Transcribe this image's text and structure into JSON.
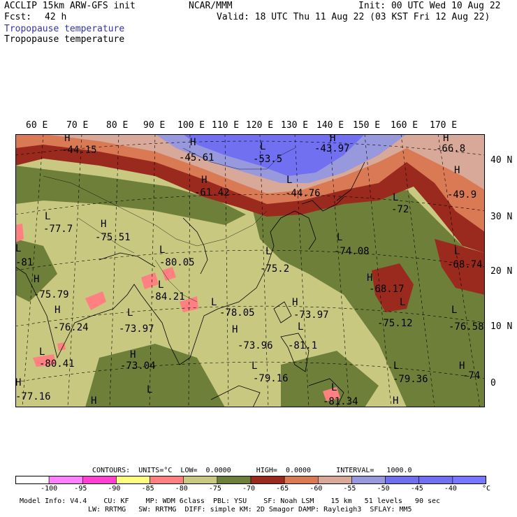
{
  "header": {
    "model": "ACCLIP 15km ARW-GFS init",
    "org": "NCAR/MMM",
    "init": "Init: 00 UTC Wed 10 Aug 22",
    "fcst_label": "Fcst:",
    "fcst_value": "42 h",
    "valid": "Valid: 18 UTC Thu 11 Aug 22 (03 KST Fri 12 Aug 22)",
    "field_title_1": "Tropopause temperature",
    "field_title_2": "Tropopause temperature"
  },
  "map": {
    "lon_labels": [
      "60 E",
      "70 E",
      "80 E",
      "90 E",
      "100 E",
      "110 E",
      "120 E",
      "130 E",
      "140 E",
      "150 E",
      "160 E",
      "170 E"
    ],
    "lat_labels": [
      "40 N",
      "30 N",
      "20 N",
      "10 N",
      "0"
    ],
    "annotations": [
      {
        "marker": "H",
        "value": "-44.15"
      },
      {
        "marker": "H",
        "value": "-45.61"
      },
      {
        "marker": "L",
        "value": "-53.5"
      },
      {
        "marker": "H",
        "value": "-43.97"
      },
      {
        "marker": "H",
        "value": "-66.8"
      },
      {
        "marker": "H",
        "value": "-61.42"
      },
      {
        "marker": "L",
        "value": "-44.76"
      },
      {
        "marker": "H",
        "value": "-49.9"
      },
      {
        "marker": "L",
        "value": "-72"
      },
      {
        "marker": "L",
        "value": "-77.7"
      },
      {
        "marker": "H",
        "value": "-75.51"
      },
      {
        "marker": "L",
        "value": "-80.05"
      },
      {
        "marker": "L",
        "value": "-74.08"
      },
      {
        "marker": "L",
        "value": "-75.2"
      },
      {
        "marker": "L",
        "value": "-68.74"
      },
      {
        "marker": "L",
        "value": "-81"
      },
      {
        "marker": "H",
        "value": "-75.79"
      },
      {
        "marker": "L",
        "value": "-84.21"
      },
      {
        "marker": "H",
        "value": "-68.17"
      },
      {
        "marker": "L",
        "value": "-78.05"
      },
      {
        "marker": "H",
        "value": "-73.97"
      },
      {
        "marker": "H",
        "value": "-76.24"
      },
      {
        "marker": "L",
        "value": "-73.97"
      },
      {
        "marker": "L",
        "value": "-75.12"
      },
      {
        "marker": "L",
        "value": "-76.58"
      },
      {
        "marker": "H",
        "value": "-73.96"
      },
      {
        "marker": "L",
        "value": "-81.1"
      },
      {
        "marker": "L",
        "value": "-80.41"
      },
      {
        "marker": "H",
        "value": "-73.04"
      },
      {
        "marker": "L",
        "value": "-79.16"
      },
      {
        "marker": "L",
        "value": "-79.36"
      },
      {
        "marker": "H",
        "value": "-74"
      },
      {
        "marker": "H",
        "value": "-77.16"
      },
      {
        "marker": "L",
        "value": "-81.34"
      },
      {
        "marker": "H",
        "value": ""
      },
      {
        "marker": "L",
        "value": ""
      },
      {
        "marker": "H",
        "value": ""
      }
    ]
  },
  "contours_line": "CONTOURS:  UNITS=°C  LOW=  0.0000      HIGH=  0.0000      INTERVAL=   1000.0",
  "colorbar": {
    "labels": [
      "-100",
      "-95",
      "-90",
      "-85",
      "-80",
      "-75",
      "-70",
      "-65",
      "-60",
      "-55",
      "-50",
      "-45",
      "-40"
    ],
    "unit": "°C",
    "colors": [
      "#ffffff",
      "#ff80ff",
      "#ff40d0",
      "#ffff80",
      "#ff8080",
      "#c8c880",
      "#6e7f3a",
      "#9a2a1e",
      "#d97a55",
      "#d8a898",
      "#9898dd",
      "#7070ee",
      "#7070f0",
      "#7777ff"
    ]
  },
  "footer": {
    "line1": "Model Info: V4.4    CU: KF    MP: WDM 6class  PBL: YSU    SF: Noah LSM    15 km   51 levels   90 sec",
    "line2": "LW: RRTMG   SW: RRTMG  DIFF: simple KM: 2D Smagor DAMP: Rayleigh3  SFLAY: MM5"
  }
}
